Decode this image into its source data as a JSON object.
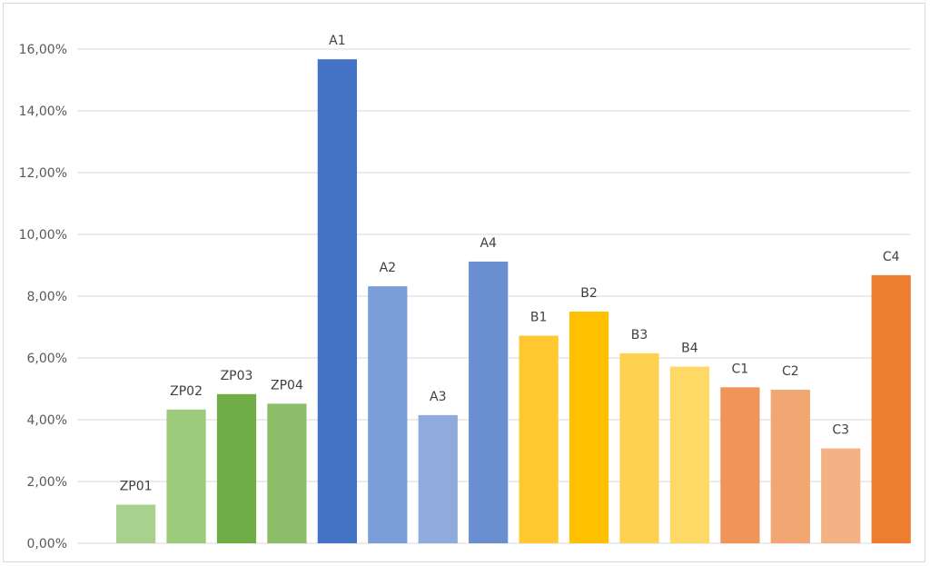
{
  "chart_data": {
    "type": "bar",
    "categories": [
      "ZP01",
      "ZP02",
      "ZP03",
      "ZP04",
      "A1",
      "A2",
      "A3",
      "A4",
      "B1",
      "B2",
      "B3",
      "B4",
      "C1",
      "C2",
      "C3",
      "C4"
    ],
    "values": [
      1.25,
      4.33,
      4.83,
      4.52,
      15.67,
      8.32,
      4.15,
      9.12,
      6.72,
      7.5,
      6.15,
      5.72,
      5.05,
      4.97,
      3.07,
      8.68
    ],
    "colors": [
      "#a9d18e",
      "#9dcb7c",
      "#70ad47",
      "#8cbe6a",
      "#4472c4",
      "#7c9ed8",
      "#8faadc",
      "#6a8fd1",
      "#ffc830",
      "#ffc000",
      "#ffd150",
      "#ffd966",
      "#f0955a",
      "#f2a672",
      "#f4b183",
      "#ed7d31"
    ],
    "yticks": [
      "0,00%",
      "2,00%",
      "4,00%",
      "6,00%",
      "8,00%",
      "10,00%",
      "12,00%",
      "14,00%",
      "16,00%"
    ],
    "ylim": [
      0,
      16
    ],
    "title": "",
    "xlabel": "",
    "ylabel": "",
    "grid": true,
    "legend": "none",
    "data_labels": "category names above bars"
  }
}
